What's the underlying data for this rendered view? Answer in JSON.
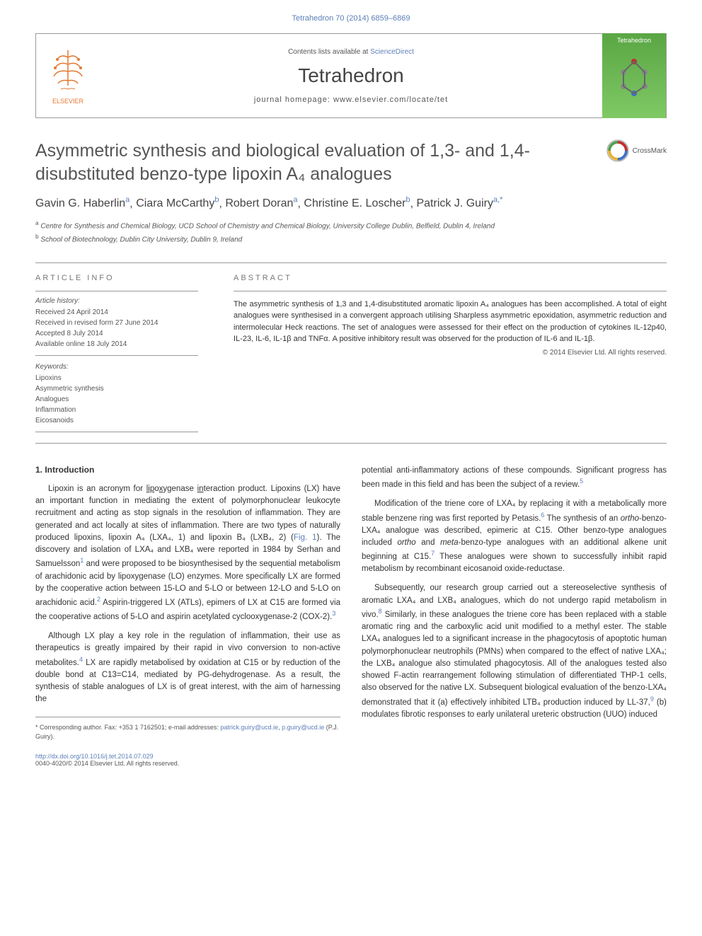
{
  "journal_ref": "Tetrahedron 70 (2014) 6859–6869",
  "header": {
    "contents_prefix": "Contents lists available at ",
    "contents_link": "ScienceDirect",
    "journal_name": "Tetrahedron",
    "homepage_prefix": "journal homepage: ",
    "homepage_url": "www.elsevier.com/locate/tet",
    "elsevier_label": "ELSEVIER",
    "cover_label": "Tetrahedron"
  },
  "crossmark_label": "CrossMark",
  "article_title": "Asymmetric synthesis and biological evaluation of 1,3- and 1,4-disubstituted benzo-type lipoxin A₄ analogues",
  "authors": [
    {
      "name": "Gavin G. Haberlin",
      "aff": "a"
    },
    {
      "name": "Ciara McCarthy",
      "aff": "b"
    },
    {
      "name": "Robert Doran",
      "aff": "a"
    },
    {
      "name": "Christine E. Loscher",
      "aff": "b"
    },
    {
      "name": "Patrick J. Guiry",
      "aff": "a,*"
    }
  ],
  "affiliations": {
    "a": "Centre for Synthesis and Chemical Biology, UCD School of Chemistry and Chemical Biology, University College Dublin, Belfield, Dublin 4, Ireland",
    "b": "School of Biotechnology, Dublin City University, Dublin 9, Ireland"
  },
  "article_info": {
    "header": "ARTICLE INFO",
    "history_label": "Article history:",
    "history": [
      "Received 24 April 2014",
      "Received in revised form 27 June 2014",
      "Accepted 8 July 2014",
      "Available online 18 July 2014"
    ],
    "keywords_label": "Keywords:",
    "keywords": [
      "Lipoxins",
      "Asymmetric synthesis",
      "Analogues",
      "Inflammation",
      "Eicosanoids"
    ]
  },
  "abstract": {
    "header": "ABSTRACT",
    "text": "The asymmetric synthesis of 1,3 and 1,4-disubstituted aromatic lipoxin A₄ analogues has been accomplished. A total of eight analogues were synthesised in a convergent approach utilising Sharpless asymmetric epoxidation, asymmetric reduction and intermolecular Heck reactions. The set of analogues were assessed for their effect on the production of cytokines IL-12p40, IL-23, IL-6, IL-1β and TNFα. A positive inhibitory result was observed for the production of IL-6 and IL-1β.",
    "copyright": "© 2014 Elsevier Ltd. All rights reserved."
  },
  "intro": {
    "heading": "1. Introduction",
    "col1": {
      "p1a": "Lipoxin is an acronym for ",
      "p1_lip": "lip",
      "p1b": "o",
      "p1_x": "x",
      "p1c": "ygenase ",
      "p1_in": "in",
      "p1d": "teraction product. Lipoxins (LX) have an important function in mediating the extent of polymorphonuclear leukocyte recruitment and acting as stop signals in the resolution of inflammation. They are generated and act locally at sites of inflammation. There are two types of naturally produced lipoxins, lipoxin A₄ (LXA₄, 1) and lipoxin B₄ (LXB₄, 2) (",
      "p1_fig": "Fig. 1",
      "p1e": "). The discovery and isolation of LXA₄ and LXB₄ were reported in 1984 by Serhan and Samuelsson",
      "p1_ref1": "1",
      "p1f": " and were proposed to be biosynthesised by the sequential metabolism of arachidonic acid by lipoxygenase (LO) enzymes. More specifically LX are formed by the cooperative action between 15-LO and 5-LO or between 12-LO and 5-LO on arachidonic acid.",
      "p1_ref2": "2",
      "p1g": " Aspirin-triggered LX (ATLs), epimers of LX at C15 are formed via the cooperative actions of 5-LO and aspirin acetylated cyclooxygenase-2 (COX-2).",
      "p1_ref3": "3",
      "p2a": "Although LX play a key role in the regulation of inflammation, their use as therapeutics is greatly impaired by their rapid in vivo conversion to non-active metabolites.",
      "p2_ref4": "4",
      "p2b": " LX are rapidly metabolised by oxidation at C15 or by reduction of the double bond at C13=C14, mediated by PG-dehydrogenase. As a result, the synthesis of stable analogues of LX is of great interest, with the aim of harnessing the"
    },
    "col2": {
      "p1a": "potential anti-inflammatory actions of these compounds. Significant progress has been made in this field and has been the subject of a review.",
      "p1_ref5": "5",
      "p2a": "Modification of the triene core of LXA₄ by replacing it with a metabolically more stable benzene ring was first reported by Petasis.",
      "p2_ref6": "6",
      "p2b": " The synthesis of an ",
      "p2_ortho": "ortho",
      "p2c": "-benzo-LXA₄ analogue was described, epimeric at C15. Other benzo-type analogues included ",
      "p2_ortho2": "ortho",
      "p2d": " and ",
      "p2_meta": "meta",
      "p2e": "-benzo-type analogues with an additional alkene unit beginning at C15.",
      "p2_ref7": "7",
      "p2f": " These analogues were shown to successfully inhibit rapid metabolism by recombinant eicosanoid oxide-reductase.",
      "p3a": "Subsequently, our research group carried out a stereoselective synthesis of aromatic LXA₄ and LXB₄ analogues, which do not undergo rapid metabolism in vivo.",
      "p3_ref8": "8",
      "p3b": " Similarly, in these analogues the triene core has been replaced with a stable aromatic ring and the carboxylic acid unit modified to a methyl ester. The stable LXA₄ analogues led to a significant increase in the phagocytosis of apoptotic human polymorphonuclear neutrophils (PMNs) when compared to the effect of native LXA₄; the LXB₄ analogue also stimulated phagocytosis. All of the analogues tested also showed F-actin rearrangement following stimulation of differentiated THP-1 cells, also observed for the native LX. Subsequent biological evaluation of the benzo-LXA₄ demonstrated that it (a) effectively inhibited LTB₄ production induced by LL-37,",
      "p3_ref9": "9",
      "p3c": " (b) modulates fibrotic responses to early unilateral ureteric obstruction (UUO) induced"
    }
  },
  "footer": {
    "corresponding_prefix": "* Corresponding author. Fax: +353 1 7162501; e-mail addresses: ",
    "email1": "patrick.guiry@ucd.ie",
    "email_sep": ", ",
    "email2": "p.guiry@ucd.ie",
    "author_suffix": " (P.J. Guiry).",
    "doi": "http://dx.doi.org/10.1016/j.tet.2014.07.029",
    "issn": "0040-4020/© 2014 Elsevier Ltd. All rights reserved."
  },
  "colors": {
    "link": "#5c7fb8",
    "elsevier": "#e47933",
    "cover_bg": "#7fc965"
  }
}
